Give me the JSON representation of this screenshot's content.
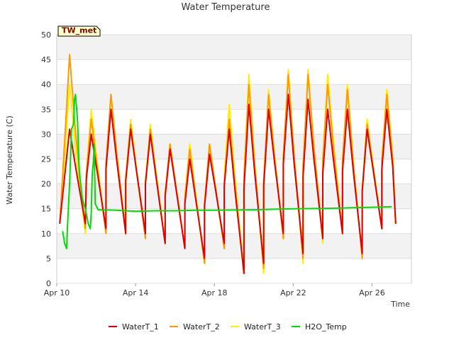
{
  "chart_data": {
    "type": "line",
    "title": "Water Temperature",
    "xlabel": "Time",
    "ylabel": "Water Temperature (C)",
    "badge": "TW_met",
    "ylim": [
      0,
      50
    ],
    "yticks": [
      0,
      5,
      10,
      15,
      20,
      25,
      30,
      35,
      40,
      45,
      50
    ],
    "xlim": [
      0,
      18
    ],
    "xlim_dates": [
      "Apr 10",
      "Apr 28"
    ],
    "xticks": [
      {
        "x": 0,
        "label": "Apr 10"
      },
      {
        "x": 4,
        "label": "Apr 14"
      },
      {
        "x": 8,
        "label": "Apr 18"
      },
      {
        "x": 12,
        "label": "Apr 22"
      },
      {
        "x": 16,
        "label": "Apr 26"
      }
    ],
    "grid": true,
    "legend_position": "bottom",
    "x_unit_note": "x values are days after Apr 10",
    "series": [
      {
        "name": "WaterT_1",
        "color": "#dd0000",
        "daily_peaks": [
          31,
          30,
          35,
          31,
          30,
          27,
          25,
          26,
          31,
          36,
          35,
          38,
          37,
          35,
          35,
          31,
          35
        ],
        "daily_mins": [
          12,
          11,
          10,
          10,
          8,
          7,
          5,
          8,
          2,
          4,
          10,
          6,
          9,
          10,
          6,
          11,
          8
        ]
      },
      {
        "name": "WaterT_2",
        "color": "#ff9900",
        "daily_peaks": [
          46,
          33,
          38,
          32,
          31,
          28,
          27,
          28,
          33,
          40,
          38,
          42,
          42,
          40,
          39,
          32,
          38
        ],
        "daily_mins": [
          11,
          10,
          10,
          9,
          8,
          7,
          4,
          7,
          2,
          3,
          9,
          5,
          9,
          10,
          5,
          11,
          8
        ]
      },
      {
        "name": "WaterT_3",
        "color": "#ffee00",
        "daily_peaks": [
          40,
          35,
          38,
          33,
          32,
          28,
          28,
          28,
          36,
          42,
          39,
          43,
          43,
          42,
          40,
          33,
          39
        ],
        "daily_mins": [
          10,
          10,
          10,
          9,
          8,
          7,
          4,
          7,
          2,
          2,
          9,
          4,
          8,
          10,
          5,
          11,
          8
        ]
      },
      {
        "name": "H2O_Temp",
        "color": "#00dd00",
        "points": [
          [
            0.3,
            10.5
          ],
          [
            0.4,
            8
          ],
          [
            0.5,
            7
          ],
          [
            0.55,
            12
          ],
          [
            0.65,
            20
          ],
          [
            0.75,
            31
          ],
          [
            0.85,
            32
          ],
          [
            0.9,
            37
          ],
          [
            0.95,
            38
          ],
          [
            1.05,
            33
          ],
          [
            1.15,
            22
          ],
          [
            1.3,
            17
          ],
          [
            1.45,
            15
          ],
          [
            1.6,
            12
          ],
          [
            1.7,
            11
          ],
          [
            1.75,
            14
          ],
          [
            1.8,
            22
          ],
          [
            1.85,
            24
          ],
          [
            1.9,
            28
          ],
          [
            1.95,
            16
          ],
          [
            2.1,
            14.8
          ],
          [
            3,
            14.7
          ],
          [
            4,
            14.5
          ],
          [
            5,
            14.6
          ],
          [
            6,
            14.6
          ],
          [
            7,
            14.7
          ],
          [
            8,
            14.7
          ],
          [
            10,
            14.8
          ],
          [
            11,
            14.9
          ],
          [
            12,
            15
          ],
          [
            14,
            15.1
          ],
          [
            15,
            15.2
          ],
          [
            16,
            15.3
          ],
          [
            17,
            15.4
          ]
        ]
      }
    ]
  }
}
